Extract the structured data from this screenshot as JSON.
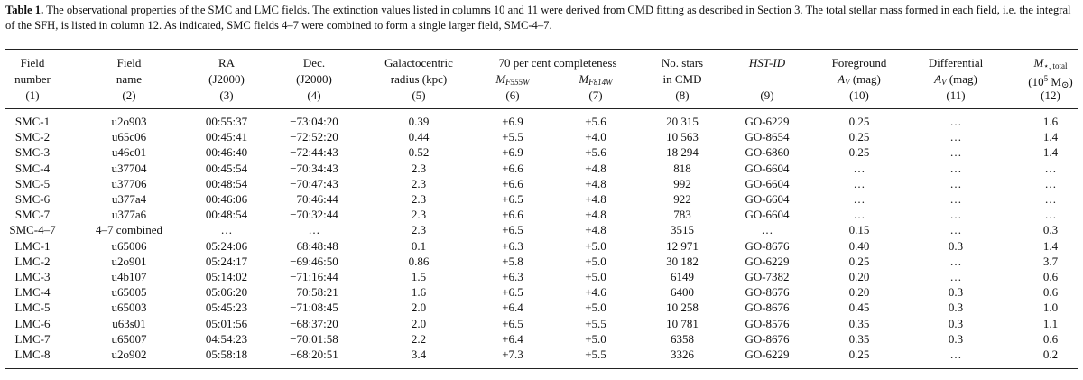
{
  "caption": {
    "label": "Table 1.",
    "text": "The observational properties of the SMC and LMC fields. The extinction values listed in columns 10 and 11 were derived from CMD fitting as described in Section 3. The total stellar mass formed in each field, i.e. the integral of the SFH, is listed in column 12. As indicated, SMC fields 4–7 were combined to form a single larger field, SMC-4–7."
  },
  "headers": {
    "c1": [
      "Field",
      "number",
      "(1)"
    ],
    "c2": [
      "Field",
      "name",
      "(2)"
    ],
    "c3": [
      "RA",
      "(J2000)",
      "(3)"
    ],
    "c4": [
      "Dec.",
      "(J2000)",
      "(4)"
    ],
    "c5": [
      "Galactocentric",
      "radius (kpc)",
      "(5)"
    ],
    "completeness": "70 per cent completeness",
    "c6": [
      "M",
      "F555W",
      "(6)"
    ],
    "c7": [
      "M",
      "F814W",
      "(7)"
    ],
    "c8": [
      "No. stars",
      "in CMD",
      "(8)"
    ],
    "c9": [
      "HST-ID",
      "(9)"
    ],
    "c10": [
      "Foreground",
      "A",
      "V",
      " (mag)",
      "(10)"
    ],
    "c11": [
      "Differential",
      "A",
      "V",
      " (mag)",
      "(11)"
    ],
    "c12": [
      "M",
      "⋆, total",
      "(10",
      "5",
      " M",
      "⊙",
      ")",
      "(12)"
    ]
  },
  "rows": [
    [
      "SMC-1",
      "u2o903",
      "00:55:37",
      "−73:04:20",
      "0.39",
      "+6.9",
      "+5.6",
      "20 315",
      "GO-6229",
      "0.25",
      "…",
      "1.6"
    ],
    [
      "SMC-2",
      "u65c06",
      "00:45:41",
      "−72:52:20",
      "0.44",
      "+5.5",
      "+4.0",
      "10 563",
      "GO-8654",
      "0.25",
      "…",
      "1.4"
    ],
    [
      "SMC-3",
      "u46c01",
      "00:46:40",
      "−72:44:43",
      "0.52",
      "+6.9",
      "+5.6",
      "18 294",
      "GO-6860",
      "0.25",
      "…",
      "1.4"
    ],
    [
      "SMC-4",
      "u37704",
      "00:45:54",
      "−70:34:43",
      "2.3",
      "+6.6",
      "+4.8",
      "818",
      "GO-6604",
      "…",
      "…",
      "…"
    ],
    [
      "SMC-5",
      "u37706",
      "00:48:54",
      "−70:47:43",
      "2.3",
      "+6.6",
      "+4.8",
      "992",
      "GO-6604",
      "…",
      "…",
      "…"
    ],
    [
      "SMC-6",
      "u377a4",
      "00:46:06",
      "−70:46:44",
      "2.3",
      "+6.5",
      "+4.8",
      "922",
      "GO-6604",
      "…",
      "…",
      "…"
    ],
    [
      "SMC-7",
      "u377a6",
      "00:48:54",
      "−70:32:44",
      "2.3",
      "+6.6",
      "+4.8",
      "783",
      "GO-6604",
      "…",
      "…",
      "…"
    ],
    [
      "SMC-4–7",
      "4–7 combined",
      "…",
      "…",
      "2.3",
      "+6.5",
      "+4.8",
      "3515",
      "…",
      "0.15",
      "…",
      "0.3"
    ],
    [
      "LMC-1",
      "u65006",
      "05:24:06",
      "−68:48:48",
      "0.1",
      "+6.3",
      "+5.0",
      "12 971",
      "GO-8676",
      "0.40",
      "0.3",
      "1.4"
    ],
    [
      "LMC-2",
      "u2o901",
      "05:24:17",
      "−69:46:50",
      "0.86",
      "+5.8",
      "+5.0",
      "30 182",
      "GO-6229",
      "0.25",
      "…",
      "3.7"
    ],
    [
      "LMC-3",
      "u4b107",
      "05:14:02",
      "−71:16:44",
      "1.5",
      "+6.3",
      "+5.0",
      "6149",
      "GO-7382",
      "0.20",
      "…",
      "0.6"
    ],
    [
      "LMC-4",
      "u65005",
      "05:06:20",
      "−70:58:21",
      "1.6",
      "+6.5",
      "+4.6",
      "6400",
      "GO-8676",
      "0.20",
      "0.3",
      "0.6"
    ],
    [
      "LMC-5",
      "u65003",
      "05:45:23",
      "−71:08:45",
      "2.0",
      "+6.4",
      "+5.0",
      "10 258",
      "GO-8676",
      "0.45",
      "0.3",
      "1.0"
    ],
    [
      "LMC-6",
      "u63s01",
      "05:01:56",
      "−68:37:20",
      "2.0",
      "+6.5",
      "+5.5",
      "10 781",
      "GO-8576",
      "0.35",
      "0.3",
      "1.1"
    ],
    [
      "LMC-7",
      "u65007",
      "04:54:23",
      "−70:01:58",
      "2.2",
      "+6.4",
      "+5.0",
      "6358",
      "GO-8676",
      "0.35",
      "0.3",
      "0.6"
    ],
    [
      "LMC-8",
      "u2o902",
      "05:58:18",
      "−68:20:51",
      "3.4",
      "+7.3",
      "+5.5",
      "3326",
      "GO-6229",
      "0.25",
      "…",
      "0.2"
    ]
  ]
}
